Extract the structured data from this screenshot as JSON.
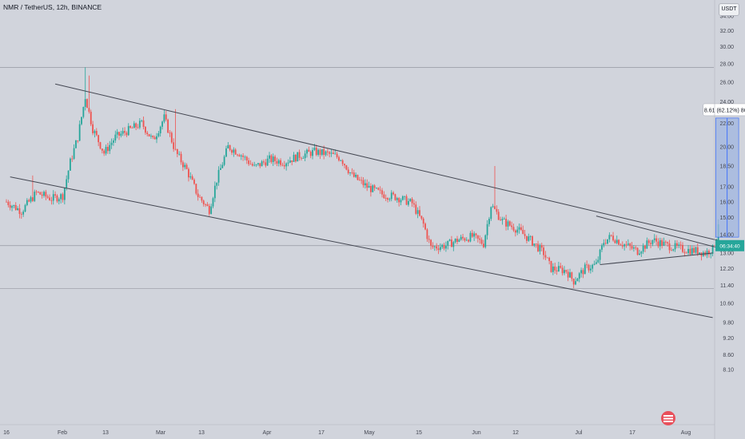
{
  "header": {
    "title": "NMR / TetherUS, 12h, BINANCE",
    "currency": "USDT"
  },
  "price_axis": {
    "ticks": [
      "34.00",
      "32.00",
      "30.00",
      "28.00",
      "26.00",
      "24.00",
      "22.00",
      "20.00",
      "18.50",
      "17.00",
      "16.00",
      "15.00",
      "14.00",
      "13.00",
      "12.20",
      "11.40",
      "10.60",
      "9.80",
      "9.20",
      "8.60",
      "8.10"
    ],
    "current_price": "13.39",
    "countdown": "06:34:40"
  },
  "time_axis": {
    "labels": [
      "16",
      "Feb",
      "13",
      "Mar",
      "13",
      "Apr",
      "17",
      "May",
      "15",
      "Jun",
      "12",
      "Jul",
      "17",
      "Aug"
    ]
  },
  "annotation": {
    "measure_label": "8.61 (62.12%) 861"
  },
  "colors": {
    "up": "#26a69a",
    "down": "#ef5350",
    "background": "#d1d4dc",
    "trendline": "#434651",
    "measure_fill": "#9fb5e0",
    "measure_stroke": "#2962ff"
  },
  "chart_data": {
    "type": "candlestick",
    "title": "NMR / TetherUS, 12h, BINANCE",
    "ylabel": "USDT",
    "scale": "log",
    "y_range": [
      7.9,
      36.5
    ],
    "x_range": [
      "2023-01-16",
      "2023-08-01"
    ],
    "grid": false,
    "close_path": [
      [
        "2023-01-16",
        16.0
      ],
      [
        "2023-01-20",
        15.4
      ],
      [
        "2023-01-24",
        16.6
      ],
      [
        "2023-01-28",
        16.2
      ],
      [
        "2023-01-31",
        16.4
      ],
      [
        "2023-02-02",
        18.8
      ],
      [
        "2023-02-04",
        20.8
      ],
      [
        "2023-02-06",
        24.5
      ],
      [
        "2023-02-08",
        21.5
      ],
      [
        "2023-02-11",
        19.5
      ],
      [
        "2023-02-14",
        20.8
      ],
      [
        "2023-02-17",
        21.3
      ],
      [
        "2023-02-21",
        22.0
      ],
      [
        "2023-02-24",
        20.5
      ],
      [
        "2023-02-27",
        22.5
      ],
      [
        "2023-03-02",
        19.6
      ],
      [
        "2023-03-05",
        18.2
      ],
      [
        "2023-03-08",
        16.4
      ],
      [
        "2023-03-11",
        15.5
      ],
      [
        "2023-03-13",
        17.5
      ],
      [
        "2023-03-16",
        20.0
      ],
      [
        "2023-03-19",
        19.5
      ],
      [
        "2023-03-23",
        18.4
      ],
      [
        "2023-03-27",
        19.0
      ],
      [
        "2023-03-31",
        18.8
      ],
      [
        "2023-04-04",
        19.3
      ],
      [
        "2023-04-08",
        19.6
      ],
      [
        "2023-04-12",
        19.4
      ],
      [
        "2023-04-15",
        19.1
      ],
      [
        "2023-04-18",
        17.8
      ],
      [
        "2023-04-22",
        17.0
      ],
      [
        "2023-04-26",
        16.5
      ],
      [
        "2023-04-30",
        16.3
      ],
      [
        "2023-05-04",
        15.9
      ],
      [
        "2023-05-07",
        14.6
      ],
      [
        "2023-05-09",
        13.3
      ],
      [
        "2023-05-13",
        13.4
      ],
      [
        "2023-05-16",
        13.7
      ],
      [
        "2023-05-20",
        13.9
      ],
      [
        "2023-05-23",
        13.5
      ],
      [
        "2023-05-25",
        15.8
      ],
      [
        "2023-05-28",
        14.8
      ],
      [
        "2023-06-01",
        14.3
      ],
      [
        "2023-06-05",
        13.6
      ],
      [
        "2023-06-08",
        13.0
      ],
      [
        "2023-06-10",
        12.2
      ],
      [
        "2023-06-14",
        12.1
      ],
      [
        "2023-06-16",
        11.6
      ],
      [
        "2023-06-19",
        12.2
      ],
      [
        "2023-06-22",
        12.4
      ],
      [
        "2023-06-24",
        13.6
      ],
      [
        "2023-06-26",
        13.9
      ],
      [
        "2023-06-29",
        13.5
      ],
      [
        "2023-07-03",
        13.1
      ],
      [
        "2023-07-07",
        13.7
      ],
      [
        "2023-07-11",
        13.4
      ],
      [
        "2023-07-15",
        13.2
      ],
      [
        "2023-07-19",
        13.1
      ],
      [
        "2023-07-21",
        13.0
      ],
      [
        "2023-07-23",
        13.2
      ],
      [
        "2023-07-24",
        13.9
      ]
    ],
    "spikes": [
      {
        "date": "2023-01-23",
        "high": 17.8
      },
      {
        "date": "2023-02-06",
        "high": 27.6
      },
      {
        "date": "2023-02-07",
        "high": 26.7
      },
      {
        "date": "2023-03-02",
        "high": 23.3
      },
      {
        "date": "2023-05-26",
        "high": 18.5
      }
    ],
    "trendlines": [
      {
        "name": "channel-upper",
        "from": [
          "2023-01-29",
          25.8
        ],
        "to": [
          "2023-07-26",
          13.6
        ]
      },
      {
        "name": "channel-lower",
        "from": [
          "2023-01-17",
          17.7
        ],
        "to": [
          "2023-07-23",
          10.0
        ]
      },
      {
        "name": "triangle-upper",
        "from": [
          "2023-06-22",
          15.1
        ],
        "to": [
          "2023-07-24",
          13.3
        ]
      },
      {
        "name": "triangle-lower",
        "from": [
          "2023-06-23",
          12.4
        ],
        "to": [
          "2023-07-23",
          13.0
        ]
      }
    ],
    "horizontal_lines": [
      27.6,
      13.39,
      11.25
    ],
    "measure": {
      "from_date": "2023-07-24",
      "to_date": "2023-07-28",
      "low": 13.86,
      "high": 22.47,
      "change": 8.61,
      "percent": 62.12
    }
  }
}
